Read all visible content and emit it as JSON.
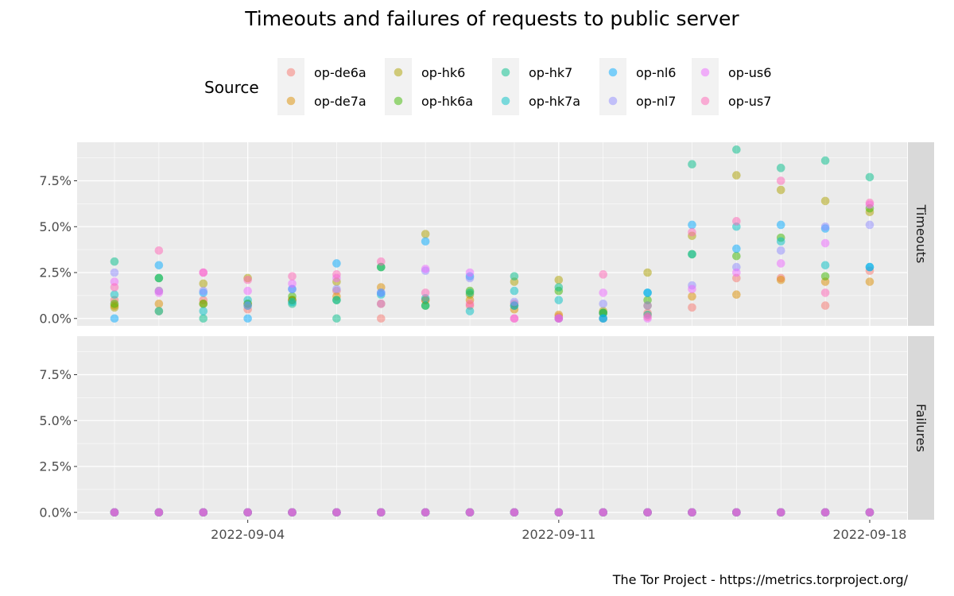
{
  "chart_data": {
    "type": "scatter",
    "title": "Timeouts and failures of requests to public server",
    "caption": "The Tor Project - https://metrics.torproject.org/",
    "legend": {
      "title": "Source",
      "placement": "top"
    },
    "dates": [
      "2022-09-01",
      "2022-09-02",
      "2022-09-03",
      "2022-09-04",
      "2022-09-05",
      "2022-09-06",
      "2022-09-07",
      "2022-09-08",
      "2022-09-09",
      "2022-09-10",
      "2022-09-11",
      "2022-09-12",
      "2022-09-13",
      "2022-09-14",
      "2022-09-15",
      "2022-09-16",
      "2022-09-17",
      "2022-09-18"
    ],
    "x_ticks": [
      "2022-09-04",
      "2022-09-11",
      "2022-09-18"
    ],
    "y_ticks": [
      "0.0%",
      "2.5%",
      "5.0%",
      "7.5%"
    ],
    "ylim": [
      -0.004,
      0.096
    ],
    "facets": [
      "Timeouts",
      "Failures"
    ],
    "series": [
      {
        "name": "op-de6a",
        "color": "#F8766D",
        "timeouts": [
          0.01,
          0.015,
          0.01,
          0.005,
          0.01,
          0.015,
          0.0,
          0.01,
          0.007,
          0.008,
          0.001,
          0.0,
          0.003,
          0.006,
          0.022,
          0.022,
          0.007,
          0.026
        ]
      },
      {
        "name": "op-de7a",
        "color": "#DB8E00",
        "timeouts": [
          0.007,
          0.008,
          0.008,
          0.008,
          0.01,
          0.012,
          0.017,
          0.01,
          0.01,
          0.005,
          0.002,
          0.003,
          0.007,
          0.012,
          0.013,
          0.021,
          0.02,
          0.02
        ]
      },
      {
        "name": "op-hk6",
        "color": "#AEA200",
        "timeouts": [
          0.006,
          0.004,
          0.019,
          0.022,
          0.01,
          0.02,
          0.008,
          0.046,
          0.013,
          0.02,
          0.021,
          0.004,
          0.025,
          0.045,
          0.078,
          0.07,
          0.064,
          0.058
        ]
      },
      {
        "name": "op-hk6a",
        "color": "#3DB800",
        "timeouts": [
          0.008,
          0.022,
          0.008,
          0.008,
          0.012,
          0.01,
          0.028,
          0.007,
          0.015,
          0.007,
          0.015,
          0.003,
          0.01,
          0.035,
          0.034,
          0.044,
          0.023,
          0.06
        ]
      },
      {
        "name": "op-hk7",
        "color": "#00BD8A",
        "timeouts": [
          0.031,
          0.022,
          0.0,
          0.007,
          0.008,
          0.0,
          0.028,
          0.007,
          0.014,
          0.023,
          0.017,
          0.003,
          0.002,
          0.084,
          0.092,
          0.082,
          0.086,
          0.077
        ]
      },
      {
        "name": "op-hk7a",
        "color": "#00BFC4",
        "timeouts": [
          0.013,
          0.004,
          0.004,
          0.01,
          0.009,
          0.01,
          0.013,
          0.011,
          0.004,
          0.015,
          0.01,
          0.0,
          0.014,
          0.035,
          0.05,
          0.042,
          0.029,
          0.028
        ]
      },
      {
        "name": "op-nl6",
        "color": "#00A9FF",
        "timeouts": [
          0.0,
          0.029,
          0.014,
          0.0,
          0.016,
          0.03,
          0.014,
          0.042,
          0.023,
          0.007,
          0.0,
          0.0,
          0.014,
          0.051,
          0.038,
          0.051,
          0.049,
          0.028
        ]
      },
      {
        "name": "op-nl7",
        "color": "#8F8CFF",
        "timeouts": [
          0.025,
          0.015,
          0.015,
          0.007,
          0.016,
          0.016,
          0.014,
          0.026,
          0.022,
          0.009,
          0.0,
          0.008,
          0.007,
          0.018,
          0.028,
          0.037,
          0.05,
          0.051
        ]
      },
      {
        "name": "op-us6",
        "color": "#EE68FF",
        "timeouts": [
          0.02,
          0.014,
          0.025,
          0.015,
          0.019,
          0.022,
          0.008,
          0.027,
          0.025,
          0.0,
          0.0,
          0.014,
          0.0,
          0.016,
          0.025,
          0.03,
          0.041,
          0.062
        ]
      },
      {
        "name": "op-us7",
        "color": "#FF63B6",
        "timeouts": [
          0.017,
          0.037,
          0.025,
          0.021,
          0.023,
          0.024,
          0.031,
          0.014,
          0.008,
          0.0,
          0.0,
          0.024,
          0.001,
          0.047,
          0.053,
          0.075,
          0.014,
          0.063
        ]
      }
    ],
    "failures_value": 0.0
  }
}
